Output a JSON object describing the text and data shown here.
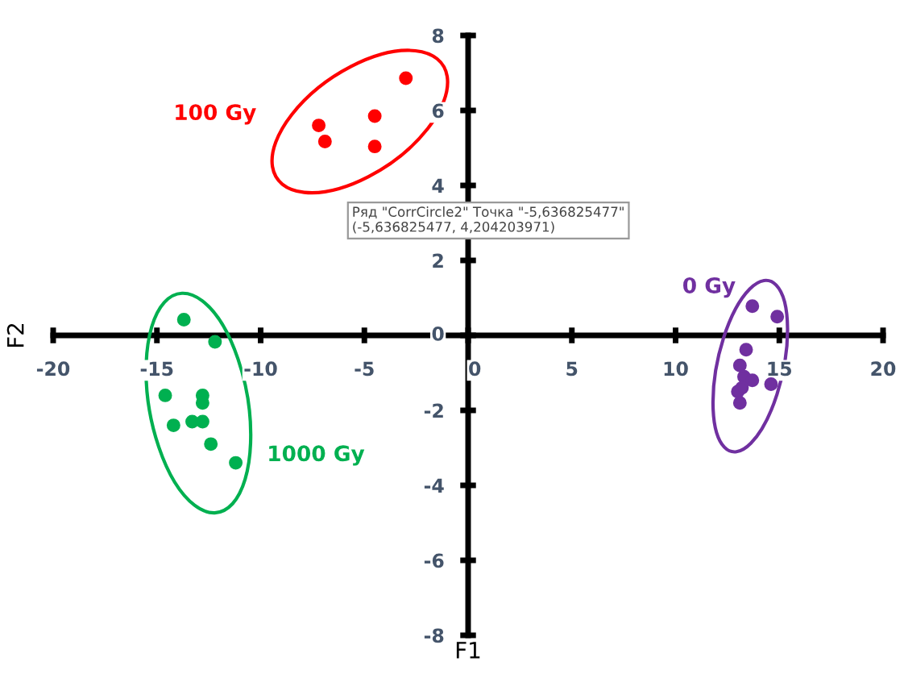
{
  "chart_data": {
    "type": "scatter",
    "xlabel": "F1",
    "ylabel": "F2",
    "xlim": [
      -20,
      20
    ],
    "ylim": [
      -8,
      8
    ],
    "xticks": [
      -20,
      -15,
      -10,
      -5,
      0,
      5,
      10,
      15,
      20
    ],
    "yticks": [
      -8,
      -6,
      -4,
      -2,
      0,
      2,
      4,
      6,
      8
    ],
    "grid": false,
    "legend": false,
    "marker": "circle",
    "annotations": [
      "Ряд \"CorrCircle2\" Точка \"-5,636825477\"\n(-5,636825477, 4,204203971)"
    ],
    "series": [
      {
        "name": "100 Gy",
        "color": "#ff0000",
        "x": [
          -3.0,
          -7.2,
          -6.9,
          -4.5,
          -4.5
        ],
        "values": [
          6.86,
          5.6,
          5.17,
          5.85,
          5.04
        ]
      },
      {
        "name": "1000 Gy",
        "color": "#00b050",
        "x": [
          -13.7,
          -12.2,
          -14.6,
          -12.8,
          -12.8,
          -14.2,
          -13.3,
          -12.8,
          -12.4,
          -11.2
        ],
        "values": [
          0.42,
          -0.17,
          -1.6,
          -1.6,
          -1.8,
          -2.4,
          -2.3,
          -2.3,
          -2.9,
          -3.4
        ]
      },
      {
        "name": "0 Gy",
        "color": "#7030a0",
        "x": [
          13.7,
          14.9,
          13.4,
          13.1,
          13.3,
          13.7,
          13.0,
          13.2,
          13.1,
          14.6
        ],
        "values": [
          0.78,
          0.5,
          -0.38,
          -0.8,
          -1.1,
          -1.2,
          -1.5,
          -1.4,
          -1.8,
          -1.3
        ]
      }
    ]
  }
}
